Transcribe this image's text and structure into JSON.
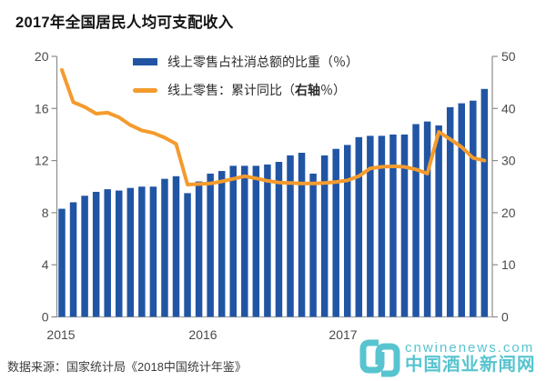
{
  "title": "2017年全国居民人均可支配收入",
  "source": "数据来源：国家统计局《2018中国统计年鉴》",
  "watermark": {
    "url": "cnwinenews.com",
    "site_name": "中国酒业新闻网",
    "color": "#57C4CF"
  },
  "legend": {
    "bars_label": "线上零售占社消总额的比重（％）",
    "line_label_prefix": "线上零售：累计同比（",
    "line_label_bold": "右轴",
    "line_label_suffix": "％）"
  },
  "chart_data": {
    "type": "bar+line",
    "title": "2017年全国居民人均可支配收入",
    "left_axis": {
      "min": 0,
      "max": 20,
      "ticks": [
        0,
        4,
        8,
        12,
        16,
        20
      ]
    },
    "right_axis": {
      "min": 0,
      "max": 50,
      "ticks": [
        0,
        10,
        20,
        30,
        40,
        50
      ]
    },
    "x_year_labels": [
      "2015",
      "2016",
      "2017"
    ],
    "grid": "off",
    "legend_position": "top-center",
    "axis_color": "#8c8c8c",
    "tick_label_color": "#4a4a4a",
    "series": [
      {
        "name": "线上零售占社消总额的比重（％）",
        "type": "bar",
        "axis": "left",
        "color": "#2155A4",
        "values": [
          8.3,
          8.8,
          9.3,
          9.6,
          9.8,
          9.7,
          9.9,
          10.0,
          10.0,
          10.6,
          10.8,
          9.5,
          10.4,
          11.0,
          11.2,
          11.6,
          11.6,
          11.6,
          11.7,
          11.9,
          12.4,
          12.6,
          11.0,
          12.4,
          12.9,
          13.2,
          13.8,
          13.9,
          13.9,
          14.0,
          14.0,
          14.8,
          15.0,
          14.7,
          16.1,
          16.4,
          16.6,
          17.5
        ]
      },
      {
        "name": "线上零售：累计同比（右轴％）",
        "type": "line",
        "axis": "right",
        "color": "#F49B2E",
        "values": [
          47.4,
          41.2,
          40.3,
          39.0,
          39.2,
          38.3,
          36.8,
          35.8,
          35.3,
          34.4,
          33.2,
          25.4,
          25.5,
          25.6,
          26.0,
          26.5,
          27.0,
          26.6,
          26.1,
          25.8,
          25.7,
          25.6,
          25.6,
          25.7,
          25.9,
          26.2,
          27.0,
          28.5,
          28.8,
          28.9,
          28.8,
          28.3,
          27.5,
          35.5,
          34.1,
          32.6,
          30.5,
          30.0
        ]
      }
    ]
  }
}
